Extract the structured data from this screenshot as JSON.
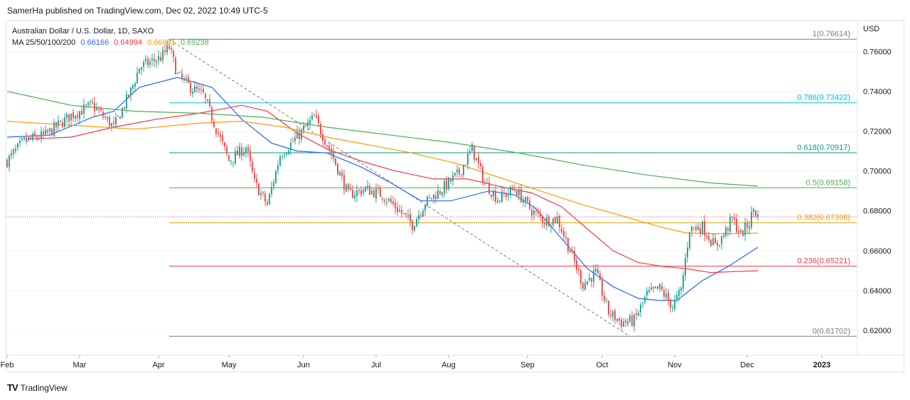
{
  "header": {
    "publisher": "SamerHa published on TradingView.com, Dec 02, 2022 10:49 UTC-5"
  },
  "legend": {
    "symbol": "Australian Dollar / U.S. Dollar, 1D, SAXO",
    "ma_label": "MA 25/50/100/200",
    "ma25": "0.66166",
    "ma50": "0.64994",
    "ma100": "0.66881",
    "ma200": "0.69238"
  },
  "footer": {
    "logo": "TV",
    "brand": "TradingView"
  },
  "colors": {
    "up": "#26a69a",
    "down": "#ef5350",
    "ma25": "#2962ff",
    "ma50": "#f23645",
    "ma100": "#ff9800",
    "ma200": "#4caf50"
  },
  "chart_data": {
    "type": "candlestick",
    "title": "Australian Dollar / U.S. Dollar, 1D, SAXO",
    "y_unit": "USD",
    "ylim": [
      0.6075,
      0.7755
    ],
    "y_ticks": [
      "0.76000",
      "0.74000",
      "0.72000",
      "0.70000",
      "0.68000",
      "0.66000",
      "0.64000",
      "0.62000"
    ],
    "x_labels": [
      "Feb",
      "Mar",
      "Apr",
      "May",
      "Jun",
      "Jul",
      "Aug",
      "Sep",
      "Oct",
      "Nov",
      "Dec",
      "2023"
    ],
    "last_price": 0.677,
    "fibonacci": [
      {
        "label": "1(0.76614)",
        "value": 0.76614,
        "color": "#787b86"
      },
      {
        "label": "0.786(0.73422)",
        "value": 0.73422,
        "color": "#00bcd4"
      },
      {
        "label": "0.618(0.70917)",
        "value": 0.70917,
        "color": "#089981"
      },
      {
        "label": "0.5(0.69158)",
        "value": 0.69158,
        "color": "#4caf50"
      },
      {
        "label": "0.382(0.67398)",
        "value": 0.67398,
        "color": "#e8a200"
      },
      {
        "label": "0.236(0.65221)",
        "value": 0.65221,
        "color": "#f23645"
      },
      {
        "label": "0(0.61702)",
        "value": 0.61702,
        "color": "#787b86"
      }
    ],
    "anchors": [
      [
        0,
        0.705
      ],
      [
        8,
        0.715
      ],
      [
        18,
        0.718
      ],
      [
        30,
        0.728
      ],
      [
        40,
        0.733
      ],
      [
        50,
        0.722
      ],
      [
        58,
        0.74
      ],
      [
        62,
        0.752
      ],
      [
        72,
        0.757
      ],
      [
        76,
        0.762
      ],
      [
        80,
        0.748
      ],
      [
        86,
        0.742
      ],
      [
        92,
        0.738
      ],
      [
        96,
        0.727
      ],
      [
        104,
        0.705
      ],
      [
        112,
        0.712
      ],
      [
        116,
        0.694
      ],
      [
        122,
        0.683
      ],
      [
        128,
        0.708
      ],
      [
        136,
        0.717
      ],
      [
        144,
        0.727
      ],
      [
        152,
        0.709
      ],
      [
        160,
        0.688
      ],
      [
        168,
        0.691
      ],
      [
        176,
        0.688
      ],
      [
        184,
        0.68
      ],
      [
        190,
        0.673
      ],
      [
        196,
        0.684
      ],
      [
        204,
        0.691
      ],
      [
        212,
        0.699
      ],
      [
        218,
        0.711
      ],
      [
        224,
        0.694
      ],
      [
        230,
        0.686
      ],
      [
        238,
        0.691
      ],
      [
        246,
        0.68
      ],
      [
        252,
        0.675
      ],
      [
        258,
        0.676
      ],
      [
        264,
        0.66
      ],
      [
        270,
        0.643
      ],
      [
        276,
        0.649
      ],
      [
        282,
        0.629
      ],
      [
        288,
        0.624
      ],
      [
        294,
        0.625
      ],
      [
        300,
        0.638
      ],
      [
        306,
        0.641
      ],
      [
        312,
        0.632
      ],
      [
        316,
        0.64
      ],
      [
        320,
        0.671
      ],
      [
        326,
        0.672
      ],
      [
        332,
        0.662
      ],
      [
        336,
        0.668
      ],
      [
        340,
        0.676
      ],
      [
        344,
        0.668
      ],
      [
        348,
        0.674
      ],
      [
        350,
        0.681
      ],
      [
        352,
        0.677
      ]
    ],
    "ma_series": [
      {
        "name": "MA 25",
        "color": "#2962ff",
        "points": [
          [
            0,
            0.717
          ],
          [
            20,
            0.718
          ],
          [
            40,
            0.727
          ],
          [
            50,
            0.73
          ],
          [
            62,
            0.742
          ],
          [
            80,
            0.747
          ],
          [
            96,
            0.742
          ],
          [
            110,
            0.726
          ],
          [
            124,
            0.714
          ],
          [
            136,
            0.71
          ],
          [
            150,
            0.709
          ],
          [
            166,
            0.702
          ],
          [
            180,
            0.694
          ],
          [
            194,
            0.685
          ],
          [
            208,
            0.685
          ],
          [
            226,
            0.69
          ],
          [
            238,
            0.688
          ],
          [
            248,
            0.681
          ],
          [
            260,
            0.666
          ],
          [
            272,
            0.651
          ],
          [
            284,
            0.642
          ],
          [
            296,
            0.636
          ],
          [
            306,
            0.635
          ],
          [
            314,
            0.635
          ],
          [
            326,
            0.645
          ],
          [
            338,
            0.652
          ],
          [
            352,
            0.6617
          ]
        ]
      },
      {
        "name": "MA 50",
        "color": "#f23645",
        "points": [
          [
            10,
            0.716
          ],
          [
            30,
            0.717
          ],
          [
            50,
            0.722
          ],
          [
            70,
            0.726
          ],
          [
            90,
            0.729
          ],
          [
            110,
            0.733
          ],
          [
            122,
            0.73
          ],
          [
            136,
            0.719
          ],
          [
            150,
            0.711
          ],
          [
            166,
            0.705
          ],
          [
            182,
            0.7
          ],
          [
            200,
            0.696
          ],
          [
            216,
            0.696
          ],
          [
            232,
            0.692
          ],
          [
            246,
            0.689
          ],
          [
            260,
            0.682
          ],
          [
            272,
            0.671
          ],
          [
            284,
            0.66
          ],
          [
            296,
            0.654
          ],
          [
            308,
            0.652
          ],
          [
            318,
            0.651
          ],
          [
            330,
            0.649
          ],
          [
            340,
            0.6495
          ],
          [
            352,
            0.6499
          ]
        ]
      },
      {
        "name": "MA 100",
        "color": "#ff9800",
        "points": [
          [
            0,
            0.725
          ],
          [
            30,
            0.723
          ],
          [
            60,
            0.721
          ],
          [
            90,
            0.724
          ],
          [
            110,
            0.725
          ],
          [
            130,
            0.722
          ],
          [
            150,
            0.717
          ],
          [
            170,
            0.713
          ],
          [
            190,
            0.709
          ],
          [
            210,
            0.704
          ],
          [
            230,
            0.697
          ],
          [
            250,
            0.69
          ],
          [
            270,
            0.683
          ],
          [
            290,
            0.677
          ],
          [
            306,
            0.672
          ],
          [
            318,
            0.669
          ],
          [
            330,
            0.6685
          ],
          [
            352,
            0.6688
          ]
        ]
      },
      {
        "name": "MA 200",
        "color": "#4caf50",
        "points": [
          [
            0,
            0.74
          ],
          [
            30,
            0.733
          ],
          [
            60,
            0.73
          ],
          [
            90,
            0.729
          ],
          [
            120,
            0.727
          ],
          [
            150,
            0.722
          ],
          [
            180,
            0.718
          ],
          [
            210,
            0.714
          ],
          [
            240,
            0.709
          ],
          [
            270,
            0.703
          ],
          [
            300,
            0.698
          ],
          [
            330,
            0.694
          ],
          [
            352,
            0.6924
          ]
        ]
      }
    ],
    "trendline": [
      [
        76,
        0.766
      ],
      [
        292,
        0.617
      ]
    ]
  }
}
